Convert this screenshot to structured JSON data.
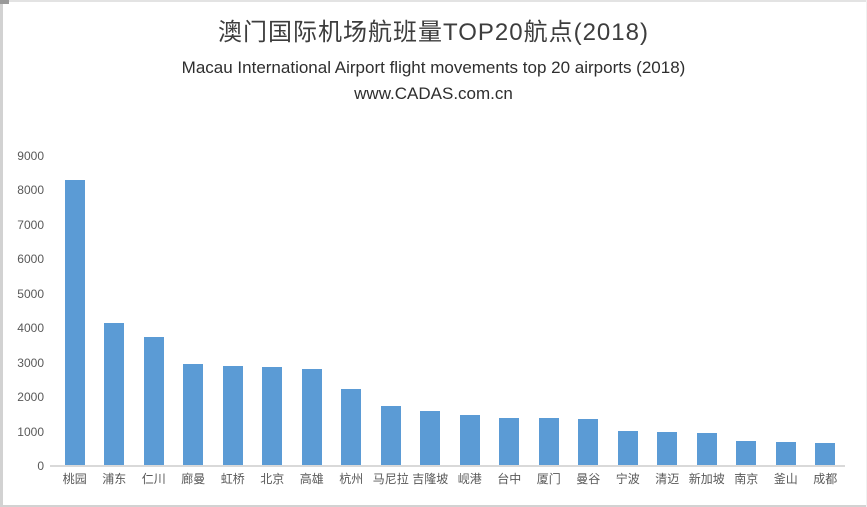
{
  "header": {
    "title": "澳门国际机场航班量TOP20航点(2018)",
    "subtitle": "Macau International Airport  flight movements top 20 airports (2018)",
    "watermark": "www.CADAS.com.cn"
  },
  "chart_data": {
    "type": "bar",
    "title": "澳门国际机场航班量TOP20航点(2018)",
    "subtitle": "Macau International Airport  flight movements top 20 airports (2018)",
    "watermark": "www.CADAS.com.cn",
    "categories": [
      "桃园",
      "浦东",
      "仁川",
      "廊曼",
      "虹桥",
      "北京",
      "高雄",
      "杭州",
      "马尼拉",
      "吉隆坡",
      "岘港",
      "台中",
      "厦门",
      "曼谷",
      "宁波",
      "清迈",
      "新加坡",
      "南京",
      "釜山",
      "成都"
    ],
    "values": [
      8300,
      4150,
      3750,
      2950,
      2900,
      2870,
      2830,
      2250,
      1750,
      1600,
      1490,
      1400,
      1380,
      1370,
      1030,
      1000,
      950,
      730,
      700,
      670
    ],
    "xlabel": "",
    "ylabel": "",
    "ylim": [
      0,
      9000
    ],
    "yticks": [
      0,
      1000,
      2000,
      3000,
      4000,
      5000,
      6000,
      7000,
      8000,
      9000
    ],
    "grid": "off",
    "legend": "none",
    "bar_color": "#5b9bd5",
    "axis_label_color": "#595959",
    "baseline_color": "#d9d9d9"
  }
}
